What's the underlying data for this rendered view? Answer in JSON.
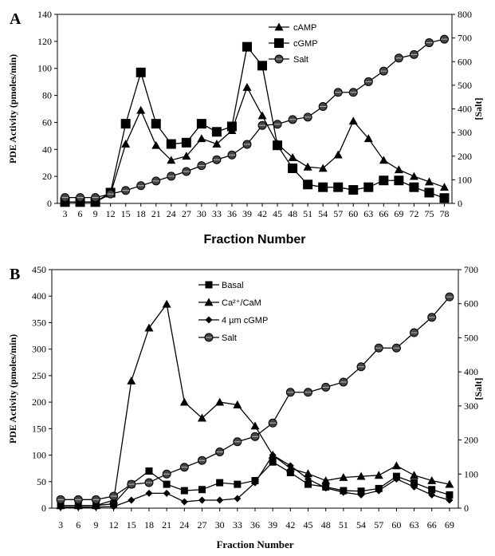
{
  "chart_data": [
    {
      "type": "line",
      "panel_label": "A",
      "xlabel": "Fraction Number",
      "ylabel": "PDE Activity (pmoles/min)",
      "y2label": "[Salt]",
      "x": [
        3,
        6,
        9,
        12,
        15,
        18,
        21,
        24,
        27,
        30,
        33,
        36,
        39,
        42,
        45,
        48,
        51,
        54,
        57,
        60,
        63,
        66,
        69,
        72,
        75,
        78
      ],
      "ylim": [
        0,
        140
      ],
      "yticks": [
        0,
        20,
        40,
        60,
        80,
        100,
        120,
        140
      ],
      "y2lim": [
        0,
        800
      ],
      "y2ticks": [
        0,
        100,
        200,
        300,
        400,
        500,
        600,
        700,
        800
      ],
      "legend_position": "top-right",
      "series": [
        {
          "name": "cAMP",
          "marker": "triangle",
          "axis": "left",
          "values": [
            1,
            1,
            1,
            7,
            44,
            69,
            43,
            32,
            35,
            48,
            44,
            54,
            86,
            65,
            44,
            34,
            27,
            26,
            36,
            61,
            48,
            32,
            25,
            20,
            16,
            12
          ]
        },
        {
          "name": "cGMP",
          "marker": "square",
          "axis": "left",
          "values": [
            1,
            1,
            1,
            8,
            59,
            97,
            59,
            44,
            45,
            59,
            53,
            57,
            116,
            102,
            43,
            26,
            14,
            12,
            12,
            10,
            12,
            17,
            17,
            12,
            8,
            4
          ]
        },
        {
          "name": "Salt",
          "marker": "circle",
          "axis": "right",
          "values": [
            25,
            25,
            25,
            40,
            55,
            75,
            95,
            115,
            135,
            160,
            185,
            205,
            250,
            330,
            335,
            355,
            365,
            410,
            470,
            470,
            515,
            560,
            615,
            630,
            680,
            695
          ]
        }
      ]
    },
    {
      "type": "line",
      "panel_label": "B",
      "xlabel": "Fraction Number",
      "ylabel": "PDE Activity (pmoles/min)",
      "y2label": "[Salt]",
      "x": [
        3,
        6,
        9,
        12,
        15,
        18,
        21,
        24,
        27,
        30,
        33,
        36,
        39,
        42,
        45,
        48,
        51,
        54,
        57,
        60,
        63,
        66,
        69
      ],
      "ylim": [
        0,
        450
      ],
      "yticks": [
        0,
        50,
        100,
        150,
        200,
        250,
        300,
        350,
        400,
        450
      ],
      "y2lim": [
        0,
        700
      ],
      "y2ticks": [
        0,
        100,
        200,
        300,
        400,
        500,
        600,
        700
      ],
      "legend_position": "top-center",
      "series": [
        {
          "name": "Basal",
          "marker": "square",
          "axis": "left",
          "values": [
            5,
            5,
            5,
            8,
            45,
            70,
            45,
            33,
            35,
            48,
            45,
            52,
            87,
            67,
            45,
            40,
            33,
            32,
            37,
            60,
            48,
            35,
            25
          ]
        },
        {
          "name": "Ca²⁺/CaM",
          "marker": "triangle",
          "axis": "left",
          "values": [
            5,
            5,
            5,
            15,
            240,
            340,
            385,
            200,
            170,
            200,
            195,
            155,
            100,
            75,
            65,
            52,
            58,
            60,
            62,
            80,
            62,
            52,
            45
          ]
        },
        {
          "name": "4 µm cGMP",
          "marker": "diamond",
          "axis": "left",
          "values": [
            2,
            2,
            2,
            3,
            15,
            28,
            28,
            12,
            15,
            15,
            18,
            48,
            100,
            80,
            55,
            38,
            30,
            25,
            33,
            55,
            40,
            25,
            15
          ]
        },
        {
          "name": "Salt",
          "marker": "circle",
          "axis": "right",
          "values": [
            25,
            25,
            25,
            35,
            70,
            75,
            100,
            120,
            140,
            165,
            195,
            210,
            250,
            340,
            340,
            355,
            370,
            415,
            470,
            470,
            515,
            560,
            620
          ]
        }
      ]
    }
  ]
}
